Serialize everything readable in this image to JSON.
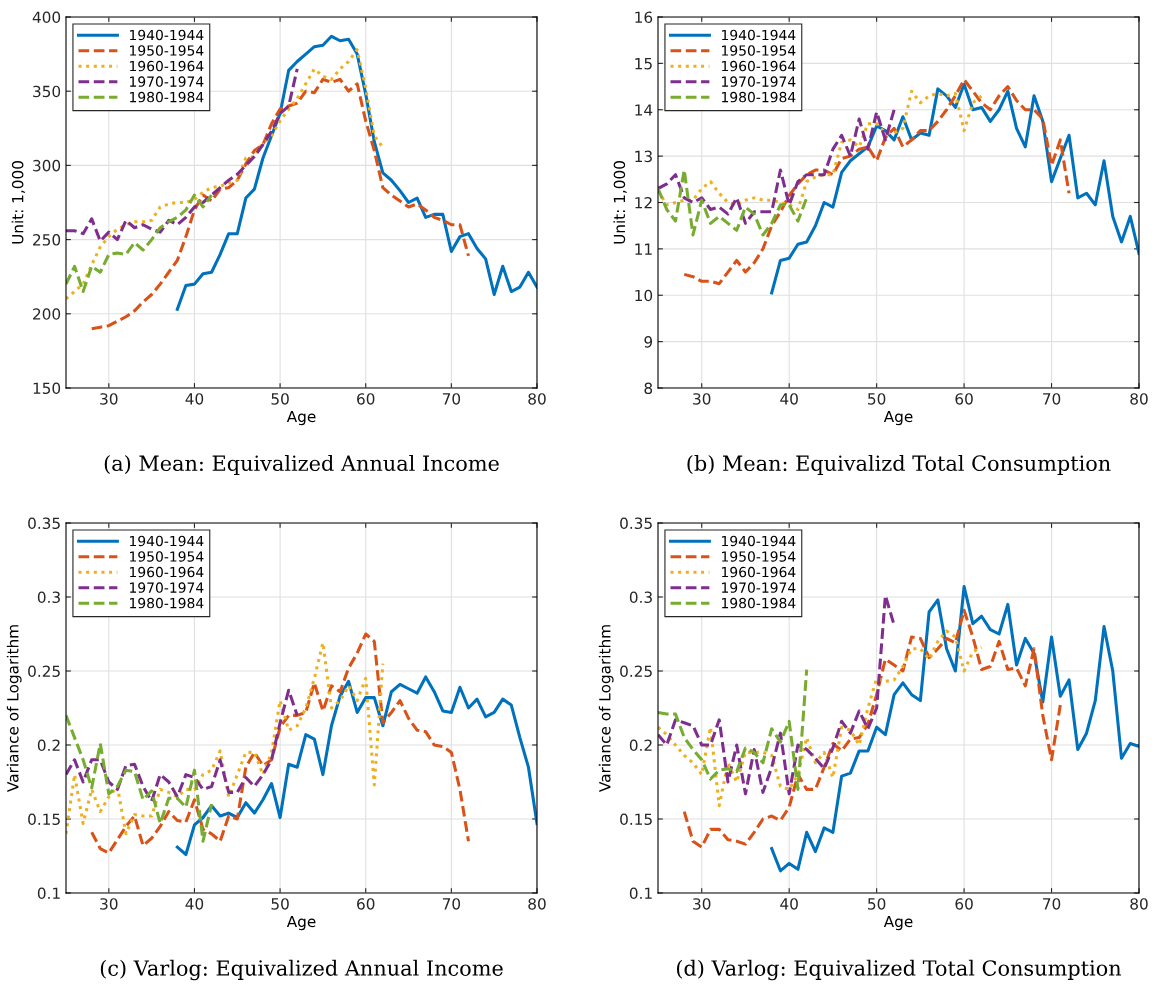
{
  "chart_data": [
    {
      "type": "line",
      "title": "(a) Mean: Equivalized Annual Income",
      "xlabel": "Age",
      "ylabel": "Unit: 1,000",
      "xlim": [
        25,
        80
      ],
      "xticks": [
        30,
        40,
        50,
        60,
        70,
        80
      ],
      "ylim": [
        150,
        400
      ],
      "yticks": [
        150,
        200,
        250,
        300,
        350,
        400
      ],
      "grid": true,
      "legend": "top left",
      "series": [
        {
          "name": "1940-1944",
          "color": "#0072bd",
          "line_style": "solid",
          "x": [
            38,
            39,
            40,
            41,
            42,
            43,
            44,
            45,
            46,
            47,
            48,
            49,
            50,
            51,
            52,
            53,
            54,
            55,
            56,
            57,
            58,
            59,
            60,
            61,
            62,
            63,
            64,
            65,
            66,
            67,
            68,
            69,
            70,
            71,
            72,
            73,
            74,
            75,
            76,
            77,
            78,
            79,
            80
          ],
          "values": [
            203,
            219,
            220,
            227,
            228,
            240,
            254,
            254,
            278,
            284,
            305,
            320,
            335,
            364,
            370,
            375,
            380,
            381,
            387,
            384,
            385,
            375,
            348,
            316,
            295,
            290,
            283,
            275,
            278,
            265,
            267,
            267,
            242,
            252,
            254,
            244,
            237,
            213,
            232,
            215,
            218,
            228,
            218
          ]
        },
        {
          "name": "1950-1954",
          "color": "#d95319",
          "line_style": "dashed",
          "x": [
            28,
            29,
            30,
            31,
            32,
            33,
            34,
            35,
            36,
            37,
            38,
            39,
            40,
            41,
            42,
            43,
            44,
            45,
            46,
            47,
            48,
            49,
            50,
            51,
            52,
            53,
            54,
            55,
            56,
            57,
            58,
            59,
            60,
            61,
            62,
            63,
            64,
            65,
            66,
            67,
            68,
            69,
            70,
            71,
            72
          ],
          "values": [
            190,
            191,
            192,
            195,
            198,
            202,
            208,
            213,
            220,
            228,
            236,
            252,
            270,
            280,
            276,
            284,
            285,
            290,
            301,
            310,
            314,
            328,
            338,
            340,
            342,
            350,
            349,
            358,
            356,
            358,
            350,
            355,
            330,
            310,
            285,
            280,
            276,
            272,
            274,
            270,
            265,
            263,
            260,
            260,
            239
          ]
        },
        {
          "name": "1960-1964",
          "color": "#edb120",
          "line_style": "dotted",
          "x": [
            25,
            26,
            27,
            28,
            29,
            30,
            31,
            32,
            33,
            34,
            35,
            36,
            37,
            38,
            39,
            40,
            41,
            42,
            43,
            44,
            45,
            46,
            47,
            48,
            49,
            50,
            51,
            52,
            53,
            54,
            55,
            56,
            57,
            58,
            59,
            60,
            61,
            62
          ],
          "values": [
            210,
            215,
            220,
            233,
            245,
            252,
            257,
            260,
            262,
            262,
            263,
            272,
            274,
            275,
            275,
            277,
            282,
            285,
            286,
            288,
            290,
            305,
            306,
            315,
            320,
            330,
            338,
            345,
            355,
            365,
            360,
            358,
            365,
            370,
            378,
            352,
            320,
            312
          ]
        },
        {
          "name": "1970-1974",
          "color": "#7e2f8e",
          "line_style": "dashed",
          "x": [
            25,
            26,
            27,
            28,
            29,
            30,
            31,
            32,
            33,
            34,
            35,
            36,
            37,
            38,
            39,
            40,
            41,
            42,
            43,
            44,
            45,
            46,
            47,
            48,
            49,
            50,
            51,
            52
          ],
          "values": [
            256,
            256,
            254,
            264,
            249,
            255,
            250,
            263,
            258,
            260,
            257,
            255,
            263,
            260,
            265,
            272,
            275,
            280,
            285,
            290,
            294,
            300,
            306,
            314,
            323,
            335,
            340,
            365
          ]
        },
        {
          "name": "1980-1984",
          "color": "#77ac30",
          "line_style": "dashed",
          "x": [
            25,
            26,
            27,
            28,
            29,
            30,
            31,
            32,
            33,
            34,
            35,
            36,
            37,
            38,
            39,
            40,
            41,
            42
          ],
          "values": [
            220,
            232,
            215,
            232,
            228,
            240,
            241,
            240,
            248,
            243,
            250,
            258,
            262,
            265,
            270,
            280,
            272,
            280
          ]
        }
      ]
    },
    {
      "type": "line",
      "title": "(b) Mean: Equivalizd Total Consumption",
      "xlabel": "Age",
      "ylabel": "Unit: 1,000",
      "xlim": [
        25,
        80
      ],
      "xticks": [
        30,
        40,
        50,
        60,
        70,
        80
      ],
      "ylim": [
        8,
        16
      ],
      "yticks": [
        8,
        9,
        10,
        11,
        12,
        13,
        14,
        15,
        16
      ],
      "grid": true,
      "legend": "top left",
      "series": [
        {
          "name": "1940-1944",
          "color": "#0072bd",
          "line_style": "solid",
          "x": [
            38,
            39,
            40,
            41,
            42,
            43,
            44,
            45,
            46,
            47,
            48,
            49,
            50,
            51,
            52,
            53,
            54,
            55,
            56,
            57,
            58,
            59,
            60,
            61,
            62,
            63,
            64,
            65,
            66,
            67,
            68,
            69,
            70,
            71,
            72,
            73,
            74,
            75,
            76,
            77,
            78,
            79,
            80
          ],
          "values": [
            10.05,
            10.75,
            10.8,
            11.1,
            11.15,
            11.5,
            12.0,
            11.9,
            12.65,
            12.9,
            13.05,
            13.2,
            13.65,
            13.55,
            13.35,
            13.85,
            13.35,
            13.5,
            13.45,
            14.45,
            14.3,
            14.05,
            14.55,
            14.0,
            14.05,
            13.75,
            14.0,
            14.4,
            13.6,
            13.2,
            14.3,
            13.75,
            12.45,
            12.95,
            13.45,
            12.1,
            12.2,
            11.95,
            12.9,
            11.7,
            11.15,
            11.7,
            10.9
          ]
        },
        {
          "name": "1950-1954",
          "color": "#d95319",
          "line_style": "dashed",
          "x": [
            28,
            29,
            30,
            31,
            32,
            33,
            34,
            35,
            36,
            37,
            38,
            39,
            40,
            41,
            42,
            43,
            44,
            45,
            46,
            47,
            48,
            49,
            50,
            51,
            52,
            53,
            54,
            55,
            56,
            57,
            58,
            59,
            60,
            61,
            62,
            63,
            64,
            65,
            66,
            67,
            68,
            69,
            70,
            71,
            72
          ],
          "values": [
            10.45,
            10.4,
            10.3,
            10.3,
            10.25,
            10.5,
            10.75,
            10.5,
            10.7,
            11.0,
            11.5,
            11.8,
            12.15,
            12.4,
            12.6,
            12.7,
            12.7,
            12.6,
            12.95,
            13.0,
            13.15,
            13.2,
            12.9,
            13.4,
            13.6,
            13.2,
            13.35,
            13.55,
            13.55,
            13.75,
            14.0,
            14.3,
            14.65,
            14.4,
            14.15,
            14.0,
            14.3,
            14.5,
            14.2,
            14.0,
            14.0,
            13.8,
            12.8,
            13.35,
            12.2
          ]
        },
        {
          "name": "1960-1964",
          "color": "#edb120",
          "line_style": "dotted",
          "x": [
            25,
            26,
            27,
            28,
            29,
            30,
            31,
            32,
            33,
            34,
            35,
            36,
            37,
            38,
            39,
            40,
            41,
            42,
            43,
            44,
            45,
            46,
            47,
            48,
            49,
            50,
            51,
            52,
            53,
            54,
            55,
            56,
            57,
            58,
            59,
            60,
            61,
            62
          ],
          "values": [
            12.25,
            11.95,
            12.0,
            12.05,
            12.05,
            12.3,
            12.45,
            12.2,
            12.0,
            11.95,
            12.05,
            12.1,
            12.05,
            12.05,
            12.0,
            11.95,
            11.85,
            12.45,
            12.55,
            12.6,
            12.6,
            13.3,
            13.35,
            13.2,
            13.7,
            13.7,
            13.5,
            13.5,
            13.6,
            14.4,
            14.15,
            14.3,
            14.35,
            14.3,
            14.35,
            13.55,
            14.15,
            14.3
          ]
        },
        {
          "name": "1970-1974",
          "color": "#7e2f8e",
          "line_style": "dashed",
          "x": [
            25,
            26,
            27,
            28,
            29,
            30,
            31,
            32,
            33,
            34,
            35,
            36,
            37,
            38,
            39,
            40,
            41,
            42,
            43,
            44,
            45,
            46,
            47,
            48,
            49,
            50,
            51,
            52
          ],
          "values": [
            12.3,
            12.4,
            12.6,
            12.1,
            12.0,
            12.1,
            11.85,
            11.9,
            11.75,
            12.1,
            11.55,
            11.8,
            11.8,
            11.8,
            12.7,
            11.95,
            12.45,
            12.6,
            12.6,
            12.6,
            13.15,
            13.45,
            13.0,
            13.8,
            13.15,
            13.95,
            13.35,
            14.0
          ]
        },
        {
          "name": "1980-1984",
          "color": "#77ac30",
          "line_style": "dashed",
          "x": [
            25,
            26,
            27,
            28,
            29,
            30,
            31,
            32,
            33,
            34,
            35,
            36,
            37,
            38,
            39,
            40,
            41,
            42
          ],
          "values": [
            12.3,
            11.85,
            11.6,
            12.7,
            11.3,
            12.05,
            11.55,
            11.7,
            11.55,
            11.4,
            11.9,
            11.75,
            11.3,
            11.55,
            11.95,
            11.95,
            11.6,
            12.1
          ]
        }
      ]
    },
    {
      "type": "line",
      "title": "(c) Varlog: Equivalized Annual Income",
      "xlabel": "Age",
      "ylabel": "Variance of Logarithm",
      "xlim": [
        25,
        80
      ],
      "xticks": [
        30,
        40,
        50,
        60,
        70,
        80
      ],
      "ylim": [
        0.1,
        0.35
      ],
      "yticks": [
        0.1,
        0.15,
        0.2,
        0.25,
        0.3,
        0.35
      ],
      "grid": true,
      "legend": "top left",
      "series": [
        {
          "name": "1940-1944",
          "color": "#0072bd",
          "line_style": "solid",
          "x": [
            38,
            39,
            40,
            41,
            42,
            43,
            44,
            45,
            46,
            47,
            48,
            49,
            50,
            51,
            52,
            53,
            54,
            55,
            56,
            57,
            58,
            59,
            60,
            61,
            62,
            63,
            64,
            65,
            66,
            67,
            68,
            69,
            70,
            71,
            72,
            73,
            74,
            75,
            76,
            77,
            78,
            79,
            80
          ],
          "values": [
            0.131,
            0.126,
            0.146,
            0.151,
            0.159,
            0.152,
            0.154,
            0.151,
            0.161,
            0.154,
            0.163,
            0.174,
            0.151,
            0.187,
            0.185,
            0.207,
            0.204,
            0.18,
            0.213,
            0.233,
            0.243,
            0.222,
            0.232,
            0.232,
            0.213,
            0.236,
            0.241,
            0.238,
            0.235,
            0.246,
            0.236,
            0.223,
            0.222,
            0.239,
            0.225,
            0.231,
            0.219,
            0.222,
            0.231,
            0.227,
            0.205,
            0.185,
            0.147
          ]
        },
        {
          "name": "1950-1954",
          "color": "#d95319",
          "line_style": "dashed",
          "x": [
            28,
            29,
            30,
            31,
            32,
            33,
            34,
            35,
            36,
            37,
            38,
            39,
            40,
            41,
            42,
            43,
            44,
            45,
            46,
            47,
            48,
            49,
            50,
            51,
            52,
            53,
            54,
            55,
            56,
            57,
            58,
            59,
            60,
            61,
            62,
            63,
            64,
            65,
            66,
            67,
            68,
            69,
            70,
            71,
            72
          ],
          "values": [
            0.141,
            0.13,
            0.127,
            0.136,
            0.145,
            0.152,
            0.132,
            0.137,
            0.145,
            0.155,
            0.149,
            0.148,
            0.163,
            0.143,
            0.14,
            0.135,
            0.152,
            0.15,
            0.185,
            0.195,
            0.186,
            0.19,
            0.212,
            0.22,
            0.22,
            0.222,
            0.242,
            0.223,
            0.24,
            0.236,
            0.252,
            0.262,
            0.275,
            0.27,
            0.215,
            0.222,
            0.23,
            0.218,
            0.21,
            0.209,
            0.2,
            0.199,
            0.195,
            0.17,
            0.135
          ]
        },
        {
          "name": "1960-1964",
          "color": "#edb120",
          "line_style": "dotted",
          "x": [
            25,
            26,
            27,
            28,
            29,
            30,
            31,
            32,
            33,
            34,
            35,
            36,
            37,
            38,
            39,
            40,
            41,
            42,
            43,
            44,
            45,
            46,
            47,
            48,
            49,
            50,
            51,
            52,
            53,
            54,
            55,
            56,
            57,
            58,
            59,
            60,
            61,
            62
          ],
          "values": [
            0.14,
            0.18,
            0.147,
            0.17,
            0.155,
            0.165,
            0.172,
            0.14,
            0.153,
            0.152,
            0.152,
            0.17,
            0.168,
            0.165,
            0.17,
            0.17,
            0.18,
            0.183,
            0.196,
            0.165,
            0.18,
            0.195,
            0.195,
            0.18,
            0.195,
            0.23,
            0.21,
            0.213,
            0.225,
            0.245,
            0.269,
            0.225,
            0.23,
            0.24,
            0.23,
            0.245,
            0.173,
            0.255
          ]
        },
        {
          "name": "1970-1974",
          "color": "#7e2f8e",
          "line_style": "dashed",
          "x": [
            25,
            26,
            27,
            28,
            29,
            30,
            31,
            32,
            33,
            34,
            35,
            36,
            37,
            38,
            39,
            40,
            41,
            42,
            43,
            44,
            45,
            46,
            47,
            48,
            49,
            50,
            51,
            52
          ],
          "values": [
            0.18,
            0.19,
            0.175,
            0.19,
            0.19,
            0.175,
            0.17,
            0.186,
            0.187,
            0.172,
            0.162,
            0.18,
            0.175,
            0.165,
            0.18,
            0.178,
            0.17,
            0.172,
            0.19,
            0.168,
            0.168,
            0.178,
            0.172,
            0.18,
            0.19,
            0.215,
            0.237,
            0.22
          ]
        },
        {
          "name": "1980-1984",
          "color": "#77ac30",
          "line_style": "dashed",
          "x": [
            25,
            26,
            27,
            28,
            29,
            30,
            31,
            32,
            33,
            34,
            35,
            36,
            37,
            38,
            39,
            40,
            41,
            42
          ],
          "values": [
            0.22,
            0.205,
            0.19,
            0.171,
            0.201,
            0.167,
            0.172,
            0.183,
            0.182,
            0.163,
            0.169,
            0.147,
            0.164,
            0.164,
            0.158,
            0.183,
            0.135,
            0.16
          ]
        }
      ]
    },
    {
      "type": "line",
      "title": "(d) Varlog: Equivalized Total Consumption",
      "xlabel": "Age",
      "ylabel": "Variance of Logarithm",
      "xlim": [
        25,
        80
      ],
      "xticks": [
        30,
        40,
        50,
        60,
        70,
        80
      ],
      "ylim": [
        0.1,
        0.35
      ],
      "yticks": [
        0.1,
        0.15,
        0.2,
        0.25,
        0.3,
        0.35
      ],
      "grid": true,
      "legend": "top left",
      "series": [
        {
          "name": "1940-1944",
          "color": "#0072bd",
          "line_style": "solid",
          "x": [
            38,
            39,
            40,
            41,
            42,
            43,
            44,
            45,
            46,
            47,
            48,
            49,
            50,
            51,
            52,
            53,
            54,
            55,
            56,
            57,
            58,
            59,
            60,
            61,
            62,
            63,
            64,
            65,
            66,
            67,
            68,
            69,
            70,
            71,
            72,
            73,
            74,
            75,
            76,
            77,
            78,
            79,
            80
          ],
          "values": [
            0.13,
            0.115,
            0.12,
            0.116,
            0.141,
            0.128,
            0.144,
            0.141,
            0.179,
            0.181,
            0.196,
            0.196,
            0.212,
            0.207,
            0.234,
            0.242,
            0.234,
            0.23,
            0.29,
            0.298,
            0.265,
            0.25,
            0.307,
            0.282,
            0.287,
            0.278,
            0.275,
            0.295,
            0.254,
            0.272,
            0.262,
            0.229,
            0.273,
            0.233,
            0.244,
            0.197,
            0.208,
            0.23,
            0.28,
            0.25,
            0.191,
            0.201,
            0.199
          ]
        },
        {
          "name": "1950-1954",
          "color": "#d95319",
          "line_style": "dashed",
          "x": [
            28,
            29,
            30,
            31,
            32,
            33,
            34,
            35,
            36,
            37,
            38,
            39,
            40,
            41,
            42,
            43,
            44,
            45,
            46,
            47,
            48,
            49,
            50,
            51,
            52,
            53,
            54,
            55,
            56,
            57,
            58,
            59,
            60,
            61,
            62,
            63,
            64,
            65,
            66,
            67,
            68,
            69,
            70,
            71
          ],
          "values": [
            0.155,
            0.135,
            0.131,
            0.143,
            0.143,
            0.136,
            0.135,
            0.133,
            0.141,
            0.15,
            0.152,
            0.149,
            0.158,
            0.18,
            0.17,
            0.17,
            0.185,
            0.201,
            0.196,
            0.204,
            0.205,
            0.214,
            0.234,
            0.258,
            0.254,
            0.25,
            0.273,
            0.272,
            0.259,
            0.265,
            0.272,
            0.269,
            0.291,
            0.273,
            0.251,
            0.253,
            0.27,
            0.251,
            0.252,
            0.24,
            0.265,
            0.22,
            0.19,
            0.227
          ]
        },
        {
          "name": "1960-1964",
          "color": "#edb120",
          "line_style": "dotted",
          "x": [
            25,
            26,
            27,
            28,
            29,
            30,
            31,
            32,
            33,
            34,
            35,
            36,
            37,
            38,
            39,
            40,
            41,
            42,
            43,
            44,
            45,
            46,
            47,
            48,
            49,
            50,
            51,
            52,
            53,
            54,
            55,
            56,
            57,
            58,
            59,
            60,
            61,
            62
          ],
          "values": [
            0.212,
            0.207,
            0.2,
            0.193,
            0.188,
            0.18,
            0.212,
            0.159,
            0.188,
            0.175,
            0.195,
            0.195,
            0.195,
            0.193,
            0.172,
            0.17,
            0.18,
            0.205,
            0.188,
            0.195,
            0.178,
            0.212,
            0.21,
            0.2,
            0.225,
            0.245,
            0.243,
            0.244,
            0.253,
            0.265,
            0.265,
            0.258,
            0.27,
            0.277,
            0.273,
            0.25,
            0.263,
            0.266
          ]
        },
        {
          "name": "1970-1974",
          "color": "#7e2f8e",
          "line_style": "dashed",
          "x": [
            25,
            26,
            27,
            28,
            29,
            30,
            31,
            32,
            33,
            34,
            35,
            36,
            37,
            38,
            39,
            40,
            41,
            42,
            43,
            44,
            45,
            46,
            47,
            48,
            49,
            50,
            51,
            52
          ],
          "values": [
            0.207,
            0.2,
            0.217,
            0.215,
            0.213,
            0.2,
            0.2,
            0.217,
            0.175,
            0.2,
            0.167,
            0.197,
            0.168,
            0.185,
            0.208,
            0.167,
            0.2,
            0.197,
            0.191,
            0.184,
            0.198,
            0.216,
            0.208,
            0.223,
            0.211,
            0.225,
            0.301,
            0.281
          ]
        },
        {
          "name": "1980-1984",
          "color": "#77ac30",
          "line_style": "dashed",
          "x": [
            25,
            26,
            27,
            28,
            29,
            30,
            31,
            32,
            33,
            34,
            35,
            36,
            37,
            38,
            39,
            40,
            41,
            42
          ],
          "values": [
            0.222,
            0.221,
            0.221,
            0.205,
            0.197,
            0.19,
            0.177,
            0.183,
            0.184,
            0.182,
            0.198,
            0.195,
            0.188,
            0.211,
            0.202,
            0.216,
            0.17,
            0.251
          ]
        }
      ]
    }
  ]
}
